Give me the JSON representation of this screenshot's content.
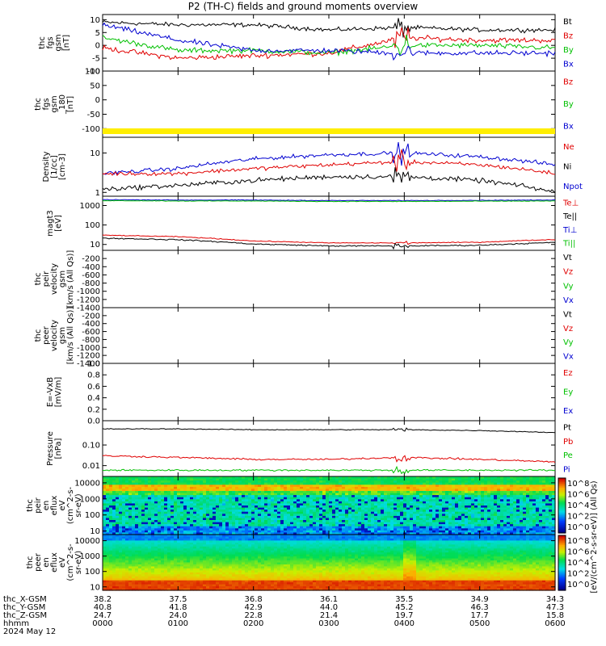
{
  "title": "P2 (TH-C) fields and ground moments overview",
  "colors": {
    "black": "#000000",
    "red": "#e00000",
    "green": "#00c000",
    "blue": "#0000d0",
    "yellow": "#ffee00"
  },
  "chart_data": [
    {
      "type": "line",
      "panel": "fgs",
      "ylabel": [
        "thc",
        "fgs",
        "gsm",
        "[nT]"
      ],
      "ylim": [
        -10,
        12
      ],
      "yticks": [
        "10",
        "5",
        "0",
        "-5",
        "-10"
      ],
      "series": [
        {
          "name": "Bt",
          "color": "black"
        },
        {
          "name": "Bz",
          "color": "red"
        },
        {
          "name": "By",
          "color": "green"
        },
        {
          "name": "Bx",
          "color": "blue"
        }
      ],
      "approx_levels": {
        "Bt": [
          9,
          8,
          8,
          6,
          7,
          6,
          6
        ],
        "Bz": [
          -1,
          -5,
          -4,
          -3,
          3,
          2,
          2
        ],
        "By": [
          3,
          -2,
          -2,
          -3,
          0,
          0,
          -1
        ],
        "Bx": [
          8,
          2,
          -2,
          -2,
          -3,
          -3,
          -3
        ]
      }
    },
    {
      "type": "line",
      "panel": "fgs-dsl",
      "ylabel": [
        "thc",
        "fgs",
        "gsm",
        "_180",
        "[nT]"
      ],
      "ylim": [
        -130,
        100
      ],
      "yticks": [
        "100",
        "50",
        "0",
        "-50",
        "-100"
      ],
      "series": [
        {
          "name": "Bz",
          "color": "red"
        },
        {
          "name": "By",
          "color": "green"
        },
        {
          "name": "Bx",
          "color": "blue"
        }
      ]
    },
    {
      "type": "line",
      "panel": "density",
      "ylabel": [
        "Density",
        "[1/cc]",
        "[cm-3]"
      ],
      "scale": "log",
      "ylim": [
        0.8,
        25
      ],
      "yticks": [
        "10",
        "1"
      ],
      "series": [
        {
          "name": "Ne",
          "color": "red"
        },
        {
          "name": "Ni",
          "color": "black"
        },
        {
          "name": "Npot",
          "color": "blue"
        }
      ],
      "approx_levels": {
        "Ne": [
          3,
          3,
          4,
          5,
          6,
          5,
          3
        ],
        "Ni": [
          1.2,
          1.5,
          2,
          2.5,
          2.5,
          2,
          1
        ],
        "Npot": [
          3,
          4,
          7,
          9,
          10,
          8,
          5
        ]
      }
    },
    {
      "type": "line",
      "panel": "temperature",
      "ylabel": [
        "magt3",
        "[eV]"
      ],
      "scale": "log",
      "ylim": [
        5,
        3000
      ],
      "yticks": [
        "1000",
        "100",
        "10"
      ],
      "series": [
        {
          "name": "Te⊥",
          "color": "red"
        },
        {
          "name": "Te||",
          "color": "black"
        },
        {
          "name": "Ti⊥",
          "color": "blue"
        },
        {
          "name": "Ti||",
          "color": "green"
        }
      ],
      "approx_levels": {
        "Te": [
          30,
          25,
          15,
          12,
          12,
          13,
          18
        ],
        "Ti": [
          2000,
          1900,
          1900,
          1800,
          1800,
          1850,
          1900
        ]
      }
    },
    {
      "type": "line",
      "panel": "peir-velocity",
      "ylabel": [
        "thc",
        "peir",
        "velocity",
        "gsm",
        "[km/s (All Qs)]"
      ],
      "ylim": [
        -1400,
        0
      ],
      "yticks": [
        "-200",
        "-400",
        "-600",
        "-800",
        "-1000",
        "-1200",
        "-1400"
      ],
      "series": [
        {
          "name": "Vt",
          "color": "black"
        },
        {
          "name": "Vz",
          "color": "red"
        },
        {
          "name": "Vy",
          "color": "green"
        },
        {
          "name": "Vx",
          "color": "blue"
        }
      ]
    },
    {
      "type": "line",
      "panel": "peer-velocity",
      "ylabel": [
        "thc",
        "peer",
        "velocity",
        "gsm",
        "[km/s (All Qs)]"
      ],
      "ylim": [
        -1400,
        0
      ],
      "yticks": [
        "-200",
        "-400",
        "-600",
        "-800",
        "-1000",
        "-1200",
        "-1400"
      ],
      "series": [
        {
          "name": "Vt",
          "color": "black"
        },
        {
          "name": "Vz",
          "color": "red"
        },
        {
          "name": "Vy",
          "color": "green"
        },
        {
          "name": "Vx",
          "color": "blue"
        }
      ]
    },
    {
      "type": "line",
      "panel": "efield",
      "ylabel": [
        "E=-VxB",
        "[mV/m]"
      ],
      "ylim": [
        0,
        1
      ],
      "yticks": [
        "1.0",
        "0.8",
        "0.6",
        "0.4",
        "0.2",
        "0.0"
      ],
      "series": [
        {
          "name": "Ez",
          "color": "red"
        },
        {
          "name": "Ey",
          "color": "green"
        },
        {
          "name": "Ex",
          "color": "blue"
        }
      ]
    },
    {
      "type": "line",
      "panel": "pressure",
      "ylabel": [
        "Pressure",
        "[nPa]"
      ],
      "scale": "log",
      "ylim": [
        0.003,
        1.5
      ],
      "yticks": [
        "0.10",
        "0.01"
      ],
      "series": [
        {
          "name": "Pt",
          "color": "black"
        },
        {
          "name": "Pb",
          "color": "red"
        },
        {
          "name": "Pe",
          "color": "green"
        },
        {
          "name": "Pi",
          "color": "blue"
        }
      ],
      "approx_levels": {
        "Pt": [
          0.6,
          0.6,
          0.55,
          0.55,
          0.55,
          0.5,
          0.4
        ],
        "Pb": [
          0.03,
          0.025,
          0.02,
          0.02,
          0.025,
          0.02,
          0.015
        ],
        "Pe": [
          0.006,
          0.006,
          0.006,
          0.006,
          0.006,
          0.006,
          0.006
        ]
      }
    },
    {
      "type": "heatmap",
      "panel": "peir-spectrogram",
      "ylabel": [
        "thc",
        "peir",
        "en",
        "eflux",
        "eV",
        "(cm^2-s-",
        "sr-eV)"
      ],
      "scale": "log",
      "ylim": [
        6,
        25000
      ],
      "yticks": [
        "10000",
        "1000",
        "100",
        "10"
      ]
    },
    {
      "type": "heatmap",
      "panel": "peer-spectrogram",
      "ylabel": [
        "thc",
        "peer",
        "en",
        "eflux",
        "eV",
        "(cm^2-s-",
        "sr-eV)"
      ],
      "scale": "log",
      "ylim": [
        6,
        25000
      ],
      "yticks": [
        "10000",
        "1000",
        "100",
        "10"
      ]
    },
    {
      "type": "table",
      "panel": "ephemeris",
      "rows": [
        {
          "label": "thc_X-GSM",
          "values": [
            "38.2",
            "37.5",
            "36.8",
            "36.1",
            "35.5",
            "34.9",
            "34.3"
          ]
        },
        {
          "label": "thc_Y-GSM",
          "values": [
            "40.8",
            "41.8",
            "42.9",
            "44.0",
            "45.2",
            "46.3",
            "47.3"
          ]
        },
        {
          "label": "thc_Z-GSM",
          "values": [
            "24.7",
            "24.0",
            "22.8",
            "21.4",
            "19.7",
            "17.7",
            "15.8"
          ]
        },
        {
          "label": "hhmm",
          "values": [
            "0000",
            "0100",
            "0200",
            "0300",
            "0400",
            "0500",
            "0600"
          ]
        }
      ],
      "date": "2024 May 12"
    }
  ],
  "colorbar": {
    "label": "[eV/(cm^2-s-sr-eV)] (All Qs)",
    "ticks": [
      "10^8",
      "10^6",
      "10^4",
      "10^2",
      "10^0"
    ],
    "ticks2": [
      "10^8",
      "10^6",
      "10^4",
      "10^2",
      "10^0"
    ]
  }
}
